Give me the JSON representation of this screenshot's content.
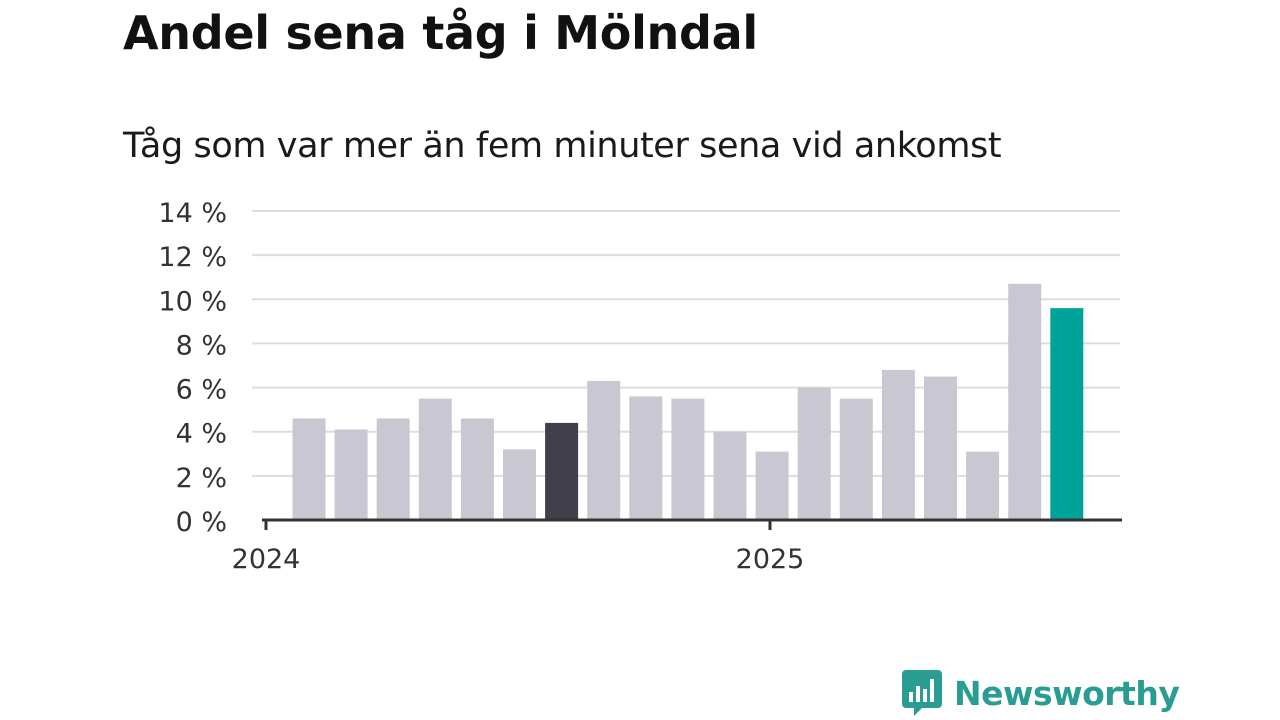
{
  "title": "Andel sena tåg i Mölndal",
  "subtitle": "Tåg som var mer än fem minuter sena vid ankomst",
  "colors": {
    "bar": "#c9c7d1",
    "highlight_dark": "#403f4b",
    "highlight_latest": "#00a398",
    "grid": "#dddddd",
    "axis": "#333333",
    "brand": "#2a9d92"
  },
  "brand": {
    "name": "Newsworthy",
    "icon": "newsworthy-chart-logo-icon"
  },
  "chart_data": {
    "type": "bar",
    "x_tick_labels": [
      {
        "label": "2024",
        "at_index": 0
      },
      {
        "label": "2025",
        "at_index": 12
      }
    ],
    "y_ticks": [
      {
        "value": 0,
        "label": "0 %"
      },
      {
        "value": 2,
        "label": "2 %"
      },
      {
        "value": 4,
        "label": "4 %"
      },
      {
        "value": 6,
        "label": "6 %"
      },
      {
        "value": 8,
        "label": "8 %"
      },
      {
        "value": 10,
        "label": "10 %"
      },
      {
        "value": 12,
        "label": "12 %"
      },
      {
        "value": 14,
        "label": "14 %"
      }
    ],
    "ylim": [
      0,
      14
    ],
    "grid": true,
    "values": [
      4.6,
      4.1,
      4.6,
      5.5,
      4.6,
      3.2,
      4.4,
      6.3,
      5.6,
      5.5,
      4.0,
      3.1,
      6.0,
      5.5,
      6.8,
      6.5,
      3.1,
      10.7,
      9.6
    ],
    "highlights": {
      "6": "dark",
      "18": "latest"
    }
  }
}
